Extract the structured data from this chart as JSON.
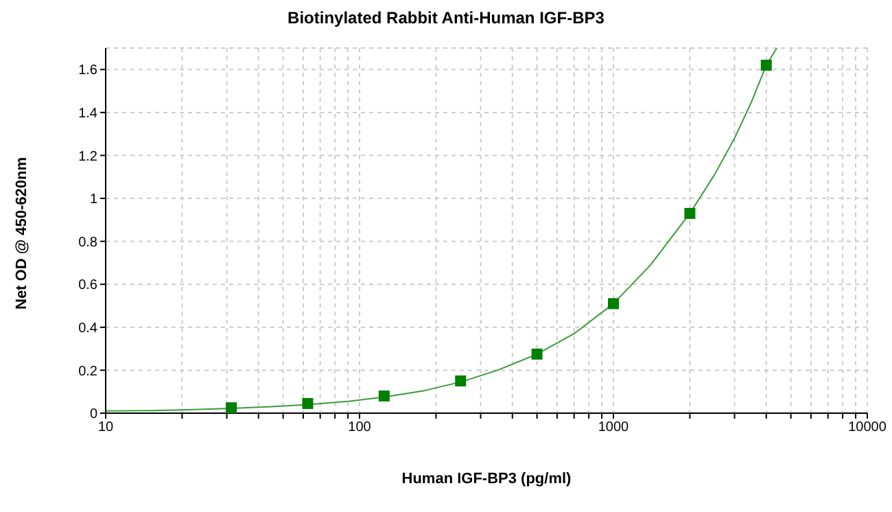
{
  "chart_data": {
    "type": "scatter",
    "title": "Biotinylated Rabbit Anti-Human IGF-BP3",
    "xlabel": "Human IGF-BP3 (pg/ml)",
    "ylabel": "Net OD @ 450-620nm",
    "log": "x",
    "grid": true,
    "marker": "square",
    "line_style": "solid",
    "xlim": [
      10,
      10000
    ],
    "xticks": [
      10,
      {
        "value": 20,
        "label": null
      },
      {
        "value": 30,
        "label": null
      },
      {
        "value": 40,
        "label": null
      },
      {
        "value": 50,
        "label": null
      },
      {
        "value": 60,
        "label": null
      },
      {
        "value": 70,
        "label": null
      },
      {
        "value": 80,
        "label": null
      },
      {
        "value": 90,
        "label": null
      },
      100,
      {
        "value": 200,
        "label": null
      },
      {
        "value": 300,
        "label": null
      },
      {
        "value": 400,
        "label": null
      },
      {
        "value": 500,
        "label": null
      },
      {
        "value": 600,
        "label": null
      },
      {
        "value": 700,
        "label": null
      },
      {
        "value": 800,
        "label": null
      },
      {
        "value": 900,
        "label": null
      },
      1000,
      {
        "value": 2000,
        "label": null
      },
      {
        "value": 3000,
        "label": null
      },
      {
        "value": 4000,
        "label": null
      },
      {
        "value": 5000,
        "label": null
      },
      {
        "value": 6000,
        "label": null
      },
      {
        "value": 7000,
        "label": null
      },
      {
        "value": 8000,
        "label": null
      },
      {
        "value": 9000,
        "label": null
      },
      10000
    ],
    "ylim": [
      0,
      1.7
    ],
    "yticks": [
      0,
      0.2,
      0.4,
      0.6,
      0.8,
      1,
      1.2,
      1.4,
      1.6
    ],
    "series": [
      {
        "type": "line",
        "marker": "none",
        "color": "#3c9a3c",
        "x": [
          10,
          15,
          20,
          31.25,
          45,
          62.5,
          90,
          125,
          180,
          250,
          350,
          500,
          700,
          1000,
          1400,
          2000,
          2500,
          3000,
          3500,
          4000,
          4400
        ],
        "values": [
          0.01,
          0.012,
          0.015,
          0.022,
          0.03,
          0.04,
          0.055,
          0.075,
          0.105,
          0.145,
          0.2,
          0.275,
          0.37,
          0.51,
          0.69,
          0.93,
          1.11,
          1.28,
          1.45,
          1.62,
          1.7
        ]
      },
      {
        "type": "scatter",
        "color": "#008000",
        "x": [
          31.25,
          62.5,
          125,
          250,
          500,
          1000,
          2000,
          4000
        ],
        "values": [
          0.025,
          0.045,
          0.08,
          0.15,
          0.275,
          0.51,
          0.93,
          1.62
        ]
      }
    ]
  }
}
